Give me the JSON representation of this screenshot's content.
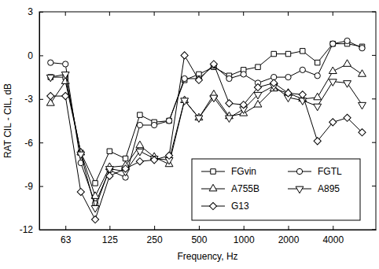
{
  "chart_data": {
    "type": "line",
    "x_label": "Frequency, Hz",
    "y_label": "RAT CIL - CIL, dB",
    "x": [
      50,
      63,
      80,
      100,
      125,
      160,
      200,
      250,
      315,
      400,
      500,
      630,
      800,
      1000,
      1250,
      1600,
      2000,
      2500,
      3150,
      4000,
      5000,
      6300
    ],
    "series": [
      {
        "name": "FGvin",
        "color": "#000000",
        "marker": "square",
        "line_style": "solid",
        "values": [
          -1.5,
          -1.5,
          -6.7,
          -8.8,
          -6.6,
          -7.1,
          -4.1,
          -4.6,
          -4.5,
          -1.7,
          -1.3,
          -0.8,
          -1.4,
          -1.0,
          -0.8,
          0.1,
          0.1,
          0.3,
          -0.5,
          0.8,
          0.8,
          0.6
        ]
      },
      {
        "name": "FGTL",
        "color": "#000000",
        "marker": "circle",
        "line_style": "solid",
        "values": [
          -0.5,
          -0.6,
          -7.4,
          -10.2,
          -7.9,
          -8.4,
          -4.8,
          -4.8,
          -4.5,
          -1.6,
          -1.6,
          -0.7,
          -1.6,
          -1.3,
          -1.9,
          -1.5,
          -1.5,
          -1.0,
          -1.4,
          0.8,
          1.0,
          0.5
        ]
      },
      {
        "name": "A755B",
        "color": "#000000",
        "marker": "triangle-up",
        "line_style": "solid",
        "values": [
          -3.3,
          -1.8,
          -6.7,
          -9.7,
          -7.7,
          -7.6,
          -6.2,
          -7.0,
          -7.5,
          -3.1,
          -4.3,
          -2.7,
          -4.2,
          -4.0,
          -3.4,
          -2.3,
          -2.6,
          -3.0,
          -2.9,
          -1.1,
          -0.6,
          -1.3
        ]
      },
      {
        "name": "A895",
        "color": "#000000",
        "marker": "triangle-down",
        "line_style": "solid",
        "values": [
          -1.5,
          -1.3,
          -6.8,
          -10.5,
          -7.8,
          -8.0,
          -6.6,
          -7.1,
          -7.2,
          -3.1,
          -4.3,
          -2.9,
          -4.3,
          -3.7,
          -2.7,
          -2.1,
          -2.9,
          -3.1,
          -3.5,
          -1.8,
          -1.9,
          -3.4
        ]
      },
      {
        "name": "G13",
        "color": "#000000",
        "marker": "diamond",
        "line_style": "solid",
        "values": [
          -2.8,
          -2.8,
          -9.4,
          -11.3,
          -8.3,
          -7.8,
          -7.3,
          -7.2,
          -6.9,
          0.0,
          -1.7,
          -0.6,
          -3.3,
          -3.4,
          -2.2,
          -1.9,
          -2.6,
          -2.7,
          -5.9,
          -4.6,
          -4.3,
          -5.3
        ]
      }
    ],
    "log": "x",
    "xlim": [
      42,
      7800
    ],
    "xticks": [
      63,
      125,
      250,
      500,
      1000,
      2000,
      4000
    ],
    "ylim": [
      -12,
      3
    ],
    "yticks": [
      -12,
      -9,
      -6,
      -3,
      0,
      3
    ],
    "grid": false,
    "legend": "lower right"
  }
}
